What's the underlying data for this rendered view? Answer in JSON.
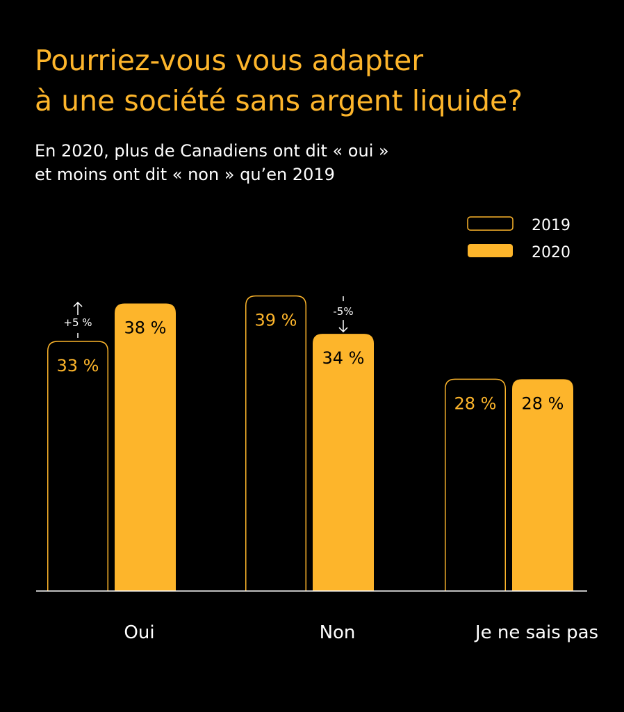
{
  "chart_data": {
    "type": "bar",
    "title": [
      "Pourriez-vous vous adapter",
      "à une société sans argent liquide?"
    ],
    "subtitle": [
      "En 2020, plus de Canadiens ont dit « oui »",
      "et moins ont dit « non » qu’en 2019"
    ],
    "categories": [
      "Oui",
      "Non",
      "Je ne sais pas"
    ],
    "series": [
      {
        "name": "2019",
        "values": [
          33,
          39,
          28
        ],
        "labels": [
          "33 %",
          "39 %",
          "28 %"
        ],
        "style": "outline"
      },
      {
        "name": "2020",
        "values": [
          38,
          34,
          28
        ],
        "labels": [
          "38 %",
          "34 %",
          "28 %"
        ],
        "style": "filled"
      }
    ],
    "annotations": [
      {
        "category": "Oui",
        "text": "+5 %",
        "direction": "up"
      },
      {
        "category": "Non",
        "text": "-5%",
        "direction": "down"
      }
    ],
    "legend_placement": "top-right",
    "grid": false,
    "colors": {
      "accent": "#FDB52B",
      "background": "#000000",
      "text": "#FFFFFF"
    }
  }
}
